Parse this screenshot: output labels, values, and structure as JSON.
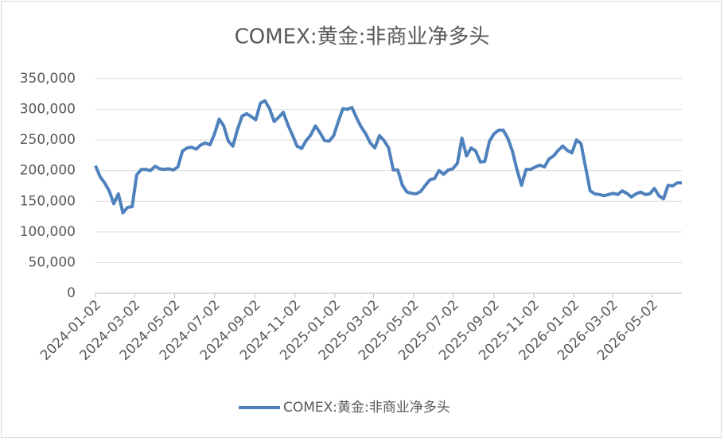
{
  "chart_data": {
    "type": "line",
    "title": "COMEX:黄金:非商业净多头",
    "x": [
      "2024-01-02",
      "2024-01-09",
      "2024-01-16",
      "2024-01-23",
      "2024-01-30",
      "2024-02-06",
      "2024-02-13",
      "2024-02-20",
      "2024-02-27",
      "2024-03-05",
      "2024-03-12",
      "2024-03-19",
      "2024-03-26",
      "2024-04-02",
      "2024-04-09",
      "2024-04-16",
      "2024-04-23",
      "2024-04-30",
      "2024-05-07",
      "2024-05-14",
      "2024-05-21",
      "2024-05-28",
      "2024-06-04",
      "2024-06-11",
      "2024-06-18",
      "2024-06-25",
      "2024-07-02",
      "2024-07-09",
      "2024-07-16",
      "2024-07-23",
      "2024-07-30",
      "2024-08-06",
      "2024-08-13",
      "2024-08-20",
      "2024-08-27",
      "2024-09-03",
      "2024-09-10",
      "2024-09-17",
      "2024-09-24",
      "2024-10-01",
      "2024-10-08",
      "2024-10-15",
      "2024-10-22",
      "2024-10-29",
      "2024-11-05",
      "2024-11-12",
      "2024-11-19",
      "2024-11-26",
      "2024-12-03",
      "2024-12-10",
      "2024-12-17",
      "2024-12-24",
      "2024-12-31",
      "2025-01-07",
      "2025-01-14",
      "2025-01-21",
      "2025-01-28",
      "2025-02-04",
      "2025-02-11",
      "2025-02-18",
      "2025-02-25",
      "2025-03-04",
      "2025-03-11",
      "2025-03-18",
      "2025-03-25",
      "2025-04-01",
      "2025-04-08",
      "2025-04-15",
      "2025-04-22",
      "2025-04-29",
      "2025-05-06",
      "2025-05-13",
      "2025-05-20",
      "2025-05-27",
      "2025-06-03",
      "2025-06-10",
      "2025-06-17",
      "2025-06-24",
      "2025-07-01",
      "2025-07-08",
      "2025-07-15",
      "2025-07-22",
      "2025-07-29",
      "2025-08-05",
      "2025-08-12",
      "2025-08-19",
      "2025-08-26",
      "2025-09-02",
      "2025-09-09",
      "2025-09-16",
      "2025-09-23",
      "2025-09-30",
      "2025-10-07",
      "2025-10-14",
      "2025-10-21",
      "2025-10-28",
      "2025-11-04",
      "2025-11-11",
      "2025-11-18",
      "2025-11-25",
      "2025-12-02",
      "2025-12-09",
      "2025-12-16",
      "2025-12-23",
      "2025-12-30",
      "2026-01-06",
      "2026-01-13",
      "2026-01-20",
      "2026-01-27",
      "2026-02-03",
      "2026-02-10",
      "2026-02-17",
      "2026-02-24",
      "2026-03-03",
      "2026-03-10",
      "2026-03-17",
      "2026-03-24",
      "2026-03-31",
      "2026-04-07",
      "2026-04-14",
      "2026-04-21",
      "2026-04-28",
      "2026-05-05",
      "2026-05-12",
      "2026-05-19",
      "2026-05-26",
      "2026-06-02",
      "2026-06-09",
      "2026-06-16"
    ],
    "series": [
      {
        "name": "COMEX:黄金:非商业净多头",
        "color": "#4f81bd",
        "values": [
          208000,
          190000,
          180000,
          167000,
          146000,
          162000,
          131000,
          140000,
          141000,
          193000,
          202000,
          202000,
          200000,
          207000,
          203000,
          202000,
          203000,
          201000,
          206000,
          232000,
          237000,
          238000,
          235000,
          242000,
          245000,
          242000,
          260000,
          284000,
          273000,
          248000,
          240000,
          267000,
          289000,
          293000,
          288000,
          283000,
          310000,
          314000,
          301000,
          280000,
          287000,
          295000,
          275000,
          258000,
          240000,
          236000,
          249000,
          258000,
          273000,
          262000,
          249000,
          248000,
          257000,
          280000,
          301000,
          300000,
          303000,
          286000,
          271000,
          260000,
          245000,
          237000,
          257000,
          249000,
          237000,
          201000,
          201000,
          176000,
          165000,
          163000,
          162000,
          166000,
          176000,
          185000,
          187000,
          200000,
          194000,
          201000,
          203000,
          212000,
          253000,
          224000,
          237000,
          232000,
          214000,
          215000,
          248000,
          260000,
          266000,
          266000,
          253000,
          232000,
          202000,
          176000,
          202000,
          202000,
          206000,
          209000,
          206000,
          219000,
          224000,
          233000,
          240000,
          233000,
          229000,
          250000,
          244000,
          205000,
          167000,
          162000,
          161000,
          159000,
          161000,
          163000,
          161000,
          167000,
          163000,
          157000,
          162000,
          165000,
          161000,
          162000,
          171000,
          159000,
          154000,
          176000,
          175000,
          180000,
          180000
        ]
      }
    ],
    "xlim": [
      "2024-01-02",
      "2026-06-16"
    ],
    "xticks": [
      "2024-01-02",
      "2024-03-02",
      "2024-05-02",
      "2024-07-02",
      "2024-09-02",
      "2024-11-02",
      "2025-01-02",
      "2025-03-02",
      "2025-05-02",
      "2025-07-02",
      "2025-09-02",
      "2025-11-02",
      "2026-01-02",
      "2026-03-02",
      "2026-05-02"
    ],
    "ylim": [
      0,
      350000
    ],
    "yticks": [
      0,
      {
        "value": 50000,
        "label": "50,000"
      },
      {
        "value": 100000,
        "label": "100,000"
      },
      {
        "value": 150000,
        "label": "150,000"
      },
      {
        "value": 200000,
        "label": "200,000"
      },
      {
        "value": 250000,
        "label": "250,000"
      },
      {
        "value": 300000,
        "label": "300,000"
      },
      {
        "value": 350000,
        "label": "350,000"
      }
    ],
    "grid": true,
    "legend": "bottom"
  }
}
